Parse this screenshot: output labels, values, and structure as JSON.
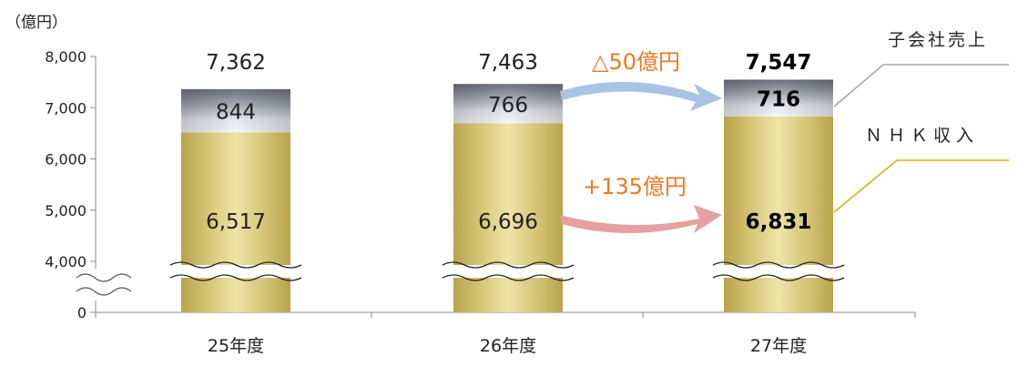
{
  "chart_data": {
    "type": "bar",
    "stacked": true,
    "axis_break": true,
    "unit_label": "（億円）",
    "categories": [
      "25年度",
      "26年度",
      "27年度"
    ],
    "series": [
      {
        "name": "NHK収入",
        "values": [
          6517,
          6696,
          6831
        ],
        "labels": [
          "6,517",
          "6,696",
          "6,831"
        ]
      },
      {
        "name": "子会社売上",
        "values": [
          844,
          766,
          716
        ],
        "labels": [
          "844",
          "766",
          "716"
        ]
      }
    ],
    "totals": [
      7362,
      7463,
      7547
    ],
    "total_labels": [
      "7,362",
      "7,463",
      "7,547"
    ],
    "legend_labels": {
      "subsidiary": "子会社売上",
      "nhk": "ＮＨＫ収入"
    },
    "yticks": [
      {
        "value": 8000,
        "label": "8,000"
      },
      {
        "value": 7000,
        "label": "7,000"
      },
      {
        "value": 6000,
        "label": "6,000"
      },
      {
        "value": 5000,
        "label": "5,000"
      },
      {
        "value": 4000,
        "label": "4,000"
      },
      {
        "value": 0,
        "label": "0"
      }
    ],
    "ylim": [
      0,
      8000
    ],
    "annotations": {
      "subsidiary_change": "△50億円",
      "nhk_change": "+135億円"
    },
    "colors": {
      "nhk": "#d7c56e",
      "subsidiary": "#8f93a1",
      "annotation_text": "#ea7a22",
      "arrow_top": "#a9c3e3",
      "arrow_bottom": "#e6a0a0",
      "leader_subsidiary": "#a6a6a6",
      "leader_nhk": "#cdb50a"
    }
  }
}
